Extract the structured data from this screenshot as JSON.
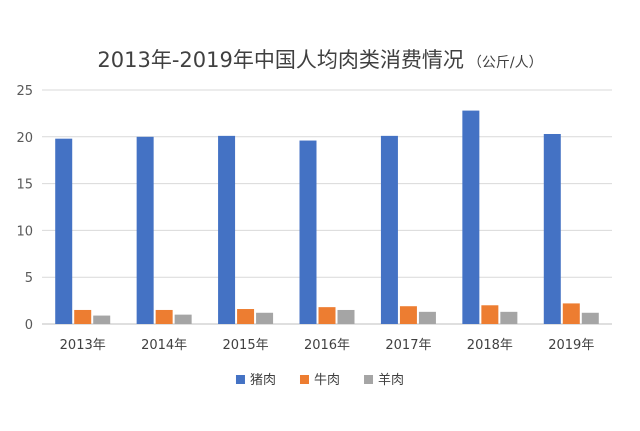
{
  "chart_data": {
    "type": "bar",
    "title": "2013年-2019年中国人均肉类消费情况",
    "subtitle": "（公斤/人）",
    "xlabel": "",
    "ylabel": "",
    "ylim": [
      0,
      25
    ],
    "yticks": [
      0,
      5,
      10,
      15,
      20,
      25
    ],
    "grid": true,
    "legend_position": "bottom",
    "categories": [
      "2013年",
      "2014年",
      "2015年",
      "2016年",
      "2017年",
      "2018年",
      "2019年"
    ],
    "series": [
      {
        "name": "猪肉",
        "color": "#4472C4",
        "values": [
          19.8,
          20.0,
          20.1,
          19.6,
          20.1,
          22.8,
          20.3
        ]
      },
      {
        "name": "牛肉",
        "color": "#ED7D31",
        "values": [
          1.5,
          1.5,
          1.6,
          1.8,
          1.9,
          2.0,
          2.2
        ]
      },
      {
        "name": "羊肉",
        "color": "#A5A5A5",
        "values": [
          0.9,
          1.0,
          1.2,
          1.5,
          1.3,
          1.3,
          1.2
        ]
      }
    ]
  }
}
